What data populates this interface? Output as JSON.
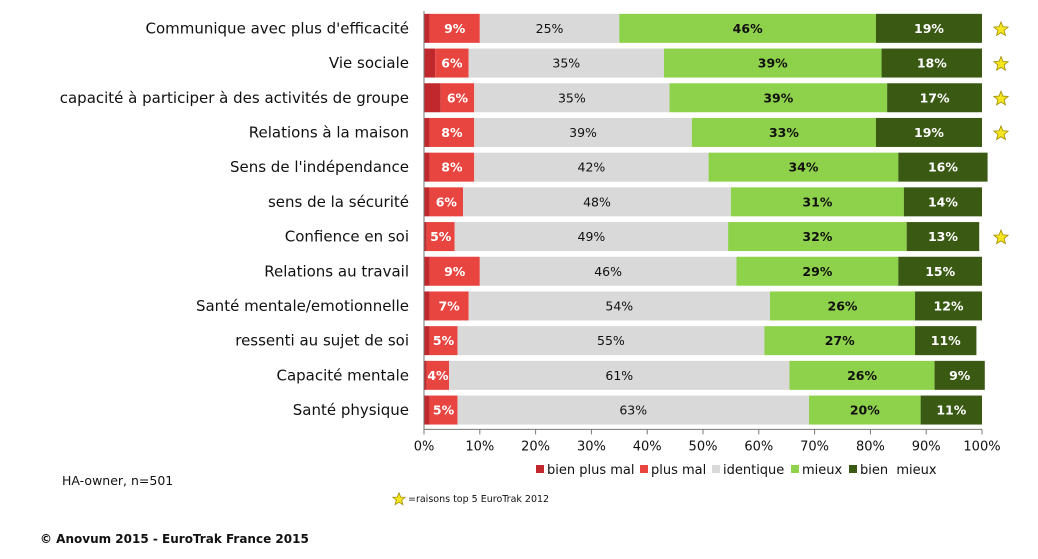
{
  "chart_data": {
    "type": "bar",
    "orientation": "horizontal",
    "stacked": true,
    "categories": [
      "Communique avec plus d'efficacité",
      "Vie  sociale",
      "capacité à participer à des activités de groupe",
      "Relations à la maison",
      "Sens de l'indépendance",
      "sens de la sécurité",
      "Confience en soi",
      "Relations au travail",
      "Santé mentale/emotionnelle",
      "ressenti au sujet de soi",
      "Capacité mentale",
      "Santé physique"
    ],
    "series": [
      {
        "name": "bien plus mal",
        "color": "#c0282d",
        "values": [
          1,
          2,
          3,
          1,
          1,
          1,
          0.5,
          1,
          1,
          1,
          0.5,
          1
        ]
      },
      {
        "name": "plus mal",
        "color": "#e84540",
        "values": [
          9,
          6,
          6,
          8,
          8,
          6,
          5,
          9,
          7,
          5,
          4,
          5
        ]
      },
      {
        "name": "identique",
        "color": "#d9d9d9",
        "values": [
          25,
          35,
          35,
          39,
          42,
          48,
          49,
          46,
          54,
          55,
          61,
          63
        ]
      },
      {
        "name": "mieux",
        "color": "#8ed14b",
        "values": [
          46,
          39,
          39,
          33,
          34,
          31,
          32,
          29,
          26,
          27,
          26,
          20
        ]
      },
      {
        "name": "bien  mieux",
        "color": "#3a5a14",
        "values": [
          19,
          18,
          17,
          19,
          16,
          14,
          13,
          15,
          12,
          11,
          9,
          11
        ]
      }
    ],
    "label_series": [
      "plus mal",
      "identique",
      "mieux",
      "bien  mieux"
    ],
    "label_colors": {
      "plus mal": "#ffffff",
      "identique": "#111111",
      "mieux": "#111111",
      "bien  mieux": "#ffffff"
    },
    "starred": [
      true,
      true,
      true,
      true,
      false,
      false,
      true,
      false,
      false,
      false,
      false,
      false
    ],
    "xlim": [
      0,
      100
    ],
    "xticks": [
      0,
      10,
      20,
      30,
      40,
      50,
      60,
      70,
      80,
      90,
      100
    ],
    "tick_suffix": "%",
    "legend_position": "bottom-right",
    "grid": false
  },
  "notes": {
    "sample": "HA-owner, n=501",
    "star_legend": "=raisons top 5 EuroTrak 2012",
    "copyright": "© Anovum 2015 - EuroTrak France 2015"
  },
  "colors": {
    "star_fill": "#f5e621",
    "star_stroke": "#a08c00",
    "axis": "#777777"
  }
}
